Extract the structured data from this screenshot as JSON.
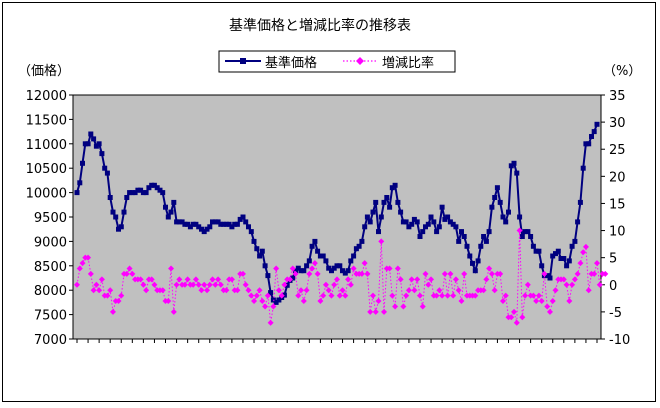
{
  "chart_data": {
    "type": "line",
    "title": "基準価格と増減比率の推移表",
    "y_left_label": "（価格）",
    "y_right_label": "（%）",
    "y_left_ticks": [
      "12000",
      "11500",
      "11000",
      "10500",
      "10000",
      "9500",
      "9000",
      "8500",
      "8000",
      "7500",
      "7000"
    ],
    "y_right_ticks": [
      "35",
      "30",
      "25",
      "20",
      "15",
      "10",
      "5",
      "0",
      "-5",
      "-10"
    ],
    "y_left_range": [
      7000,
      12000
    ],
    "y_right_range": [
      -10,
      35
    ],
    "grid": false,
    "legend_position": "top-right",
    "plot_background": "#c0c0c0",
    "series": [
      {
        "name": "基準価格",
        "axis": "left",
        "color": "#000080",
        "marker": "square",
        "line_style": "solid",
        "values": [
          10000,
          10200,
          10600,
          11000,
          11000,
          11200,
          11100,
          10950,
          11000,
          10800,
          10500,
          10400,
          9900,
          9600,
          9500,
          9250,
          9300,
          9600,
          9900,
          10000,
          10000,
          10000,
          10050,
          10050,
          10000,
          10000,
          10100,
          10150,
          10150,
          10100,
          10050,
          10000,
          9700,
          9500,
          9600,
          9800,
          9400,
          9400,
          9400,
          9350,
          9350,
          9300,
          9350,
          9350,
          9300,
          9250,
          9200,
          9250,
          9300,
          9400,
          9400,
          9400,
          9350,
          9350,
          9350,
          9350,
          9300,
          9350,
          9350,
          9450,
          9500,
          9400,
          9300,
          9200,
          9000,
          8850,
          8700,
          8800,
          8500,
          8300,
          7950,
          7800,
          7750,
          7800,
          7850,
          7900,
          8100,
          8200,
          8250,
          8400,
          8450,
          8400,
          8400,
          8500,
          8600,
          8900,
          9000,
          8800,
          8700,
          8700,
          8600,
          8450,
          8400,
          8450,
          8500,
          8500,
          8400,
          8350,
          8400,
          8600,
          8700,
          8850,
          8900,
          9000,
          9300,
          9500,
          9400,
          9600,
          9800,
          9200,
          9500,
          9800,
          9900,
          9700,
          10100,
          10150,
          9800,
          9600,
          9400,
          9400,
          9300,
          9350,
          9450,
          9400,
          9100,
          9200,
          9300,
          9350,
          9500,
          9400,
          9200,
          9300,
          9700,
          9450,
          9500,
          9400,
          9350,
          9300,
          9000,
          9200,
          9100,
          8900,
          8700,
          8550,
          8400,
          8600,
          8900,
          9100,
          9000,
          9200,
          9700,
          9900,
          10100,
          9800,
          9500,
          9400,
          9600,
          10550,
          10600,
          10400,
          9500,
          9100,
          9200,
          9200,
          9100,
          8900,
          8800,
          8800,
          8500,
          8300,
          8300,
          8250,
          8700,
          8750,
          8800,
          8650,
          8650,
          8500,
          8600,
          8900,
          9000,
          9400,
          9800,
          10500,
          11000,
          11000,
          11150,
          11250,
          11400
        ]
      },
      {
        "name": "増減比率",
        "axis": "right",
        "color": "#ff00ff",
        "marker": "diamond",
        "line_style": "dotted",
        "values": [
          0,
          3,
          4,
          5,
          5,
          2,
          -1,
          0,
          -1,
          1,
          -2,
          -2,
          -1,
          -5,
          -3,
          -3,
          -2,
          2,
          2,
          3,
          2,
          1,
          1,
          1,
          0,
          -1,
          1,
          1,
          0,
          -1,
          -1,
          -1,
          -3,
          -3,
          3,
          -5,
          0,
          1,
          0,
          0,
          1,
          0,
          0,
          1,
          0,
          -1,
          0,
          -1,
          0,
          1,
          0,
          1,
          0,
          -1,
          -1,
          1,
          1,
          -1,
          -1,
          2,
          2,
          0,
          -1,
          -2,
          -3,
          -2,
          -1,
          -3,
          -4,
          -2,
          -7,
          -4,
          3,
          -1,
          -2,
          0,
          1,
          1,
          3,
          2,
          -2,
          -1,
          -3,
          -1,
          2,
          3,
          4,
          2,
          -3,
          -2,
          0,
          -1,
          -2,
          0,
          1,
          -2,
          -1,
          -2,
          1,
          0,
          3,
          2,
          2,
          2,
          4,
          2,
          -5,
          -2,
          -5,
          -3,
          8,
          -5,
          3,
          3,
          -2,
          -4,
          3,
          1,
          -4,
          -2,
          -1,
          1,
          -1,
          1,
          -2,
          -4,
          2,
          0,
          1,
          -2,
          -2,
          -1,
          -2,
          2,
          -2,
          2,
          -2,
          1,
          -1,
          -3,
          2,
          -2,
          -2,
          -2,
          -2,
          -1,
          -1,
          -1,
          1,
          3,
          2,
          -1,
          2,
          2,
          -3,
          -2,
          -6,
          -6,
          -5,
          -7,
          10,
          -6,
          -2,
          0,
          -2,
          -2,
          -3,
          -2,
          -3,
          2,
          -4,
          -5,
          -3,
          -1,
          1,
          1,
          1,
          0,
          -3,
          0,
          1,
          2,
          4,
          6,
          7,
          -1,
          2,
          2,
          4,
          0,
          2,
          2
        ]
      }
    ]
  }
}
